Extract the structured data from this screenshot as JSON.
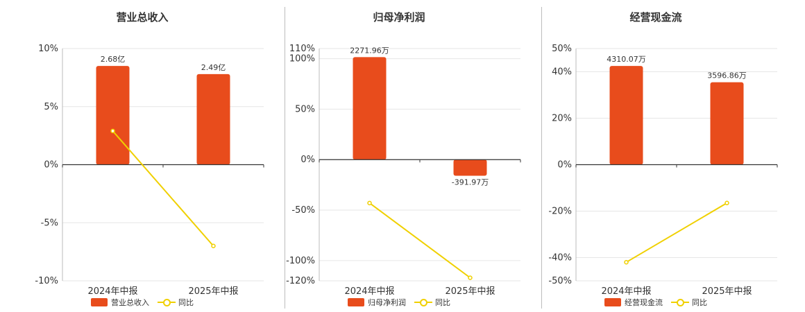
{
  "colors": {
    "bar": "#e84c1c",
    "line": "#f0d000",
    "grid": "#e6e6e6",
    "axis": "#333333"
  },
  "chart_data": [
    {
      "type": "bar",
      "title": "营业总收入",
      "categories": [
        "2024年中报",
        "2025年中报"
      ],
      "bar_values": [
        8.5,
        7.8
      ],
      "bar_labels": [
        "2.68亿",
        "2.49亿"
      ],
      "yoy_values": [
        2.9,
        -7.0
      ],
      "yticks": [
        10,
        5,
        0,
        -5,
        -10
      ],
      "ytick_labels": [
        "10%",
        "5%",
        "0%",
        "-5%",
        "-10%"
      ],
      "ylim": [
        -10,
        10
      ],
      "legend": {
        "bar": "营业总收入",
        "line": "同比"
      }
    },
    {
      "type": "bar",
      "title": "归母净利润",
      "categories": [
        "2024年中报",
        "2025年中报"
      ],
      "bar_values": [
        101.5,
        -16
      ],
      "bar_labels": [
        "2271.96万",
        "-391.97万"
      ],
      "yoy_values": [
        -43,
        -117
      ],
      "yticks": [
        110,
        100,
        50,
        0,
        -50,
        -100,
        -120
      ],
      "ytick_labels": [
        "110%",
        "100%",
        "50%",
        "0%",
        "-50%",
        "-100%",
        "-120%"
      ],
      "ylim": [
        -120,
        110
      ],
      "legend": {
        "bar": "归母净利润",
        "line": "同比"
      }
    },
    {
      "type": "bar",
      "title": "经营现金流",
      "categories": [
        "2024年中报",
        "2025年中报"
      ],
      "bar_values": [
        42.5,
        35.5
      ],
      "bar_labels": [
        "4310.07万",
        "3596.86万"
      ],
      "yoy_values": [
        -42,
        -16.5
      ],
      "yticks": [
        50,
        40,
        20,
        0,
        -20,
        -40,
        -50
      ],
      "ytick_labels": [
        "50%",
        "40%",
        "20%",
        "0%",
        "-20%",
        "-40%",
        "-50%"
      ],
      "ylim": [
        -50,
        50
      ],
      "legend": {
        "bar": "经营现金流",
        "line": "同比"
      }
    }
  ]
}
